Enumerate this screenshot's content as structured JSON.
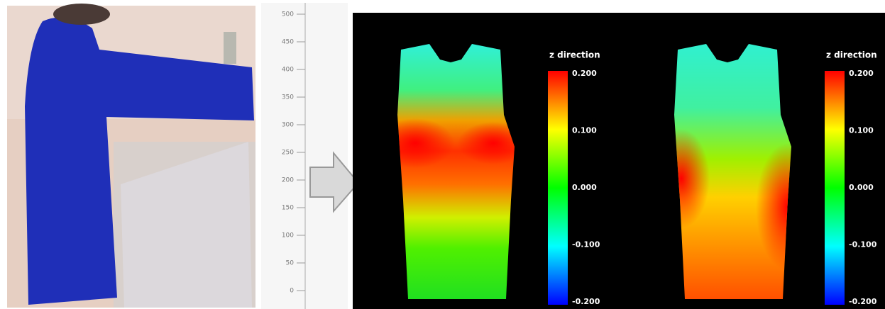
{
  "ruler": {
    "labels": [
      "500",
      "450",
      "400",
      "350",
      "300",
      "250",
      "200",
      "150",
      "100",
      "50",
      "0"
    ]
  },
  "heatmaps": [
    {
      "title": "z direction",
      "ticks": [
        "0.200",
        "0.100",
        "0.000",
        "-0.100",
        "-0.200"
      ]
    },
    {
      "title": "z direction",
      "ticks": [
        "0.200",
        "0.100",
        "0.000",
        "-0.100",
        "-0.200"
      ]
    }
  ]
}
